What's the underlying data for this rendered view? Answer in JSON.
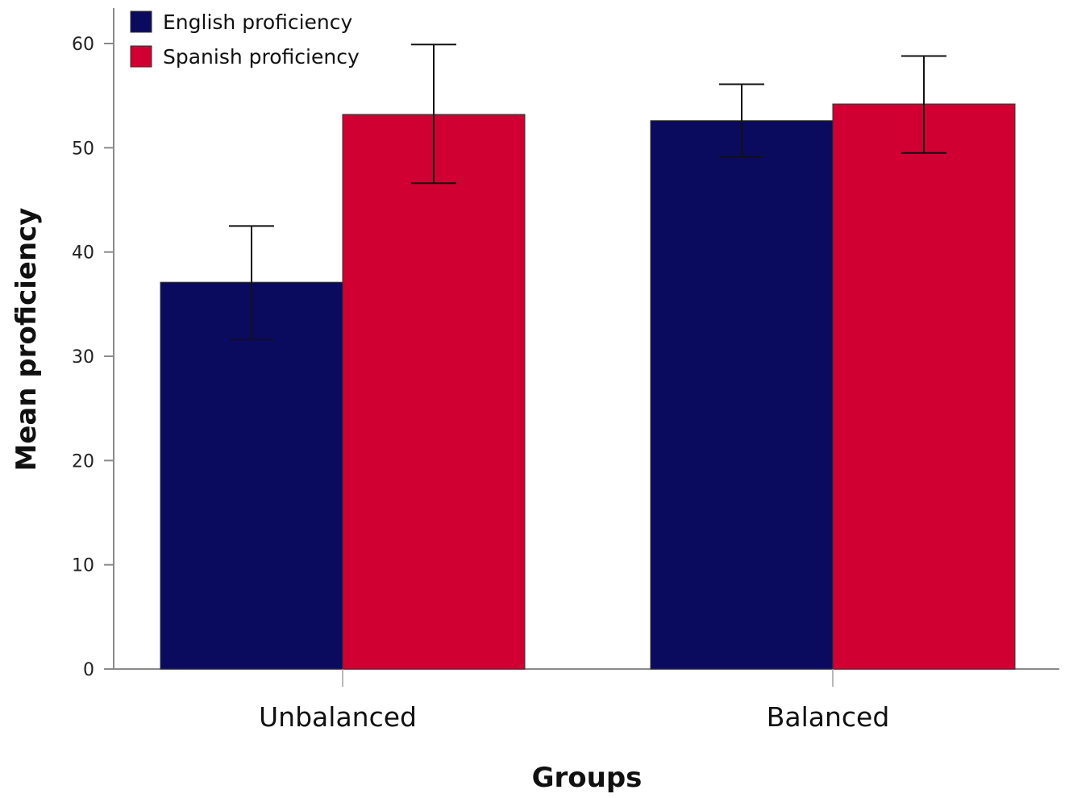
{
  "chart_data": {
    "type": "bar",
    "title": "",
    "xlabel": "Groups",
    "ylabel": "Mean proficiency",
    "categories": [
      "Unbalanced",
      "Balanced"
    ],
    "ylim": [
      0,
      60
    ],
    "yticks": [
      0,
      10,
      20,
      30,
      40,
      50,
      60
    ],
    "grid": false,
    "legend_position": "top-left",
    "error_bars": true,
    "series": [
      {
        "name": "English proficiency",
        "color": "#0a0b5e",
        "values": [
          37.1,
          52.6
        ],
        "error_low": [
          31.6,
          49.1
        ],
        "error_high": [
          42.5,
          56.1
        ]
      },
      {
        "name": "Spanish proficiency",
        "color": "#d10032",
        "values": [
          53.2,
          54.2
        ],
        "error_low": [
          46.6,
          49.5
        ],
        "error_high": [
          59.9,
          58.8
        ]
      }
    ]
  }
}
